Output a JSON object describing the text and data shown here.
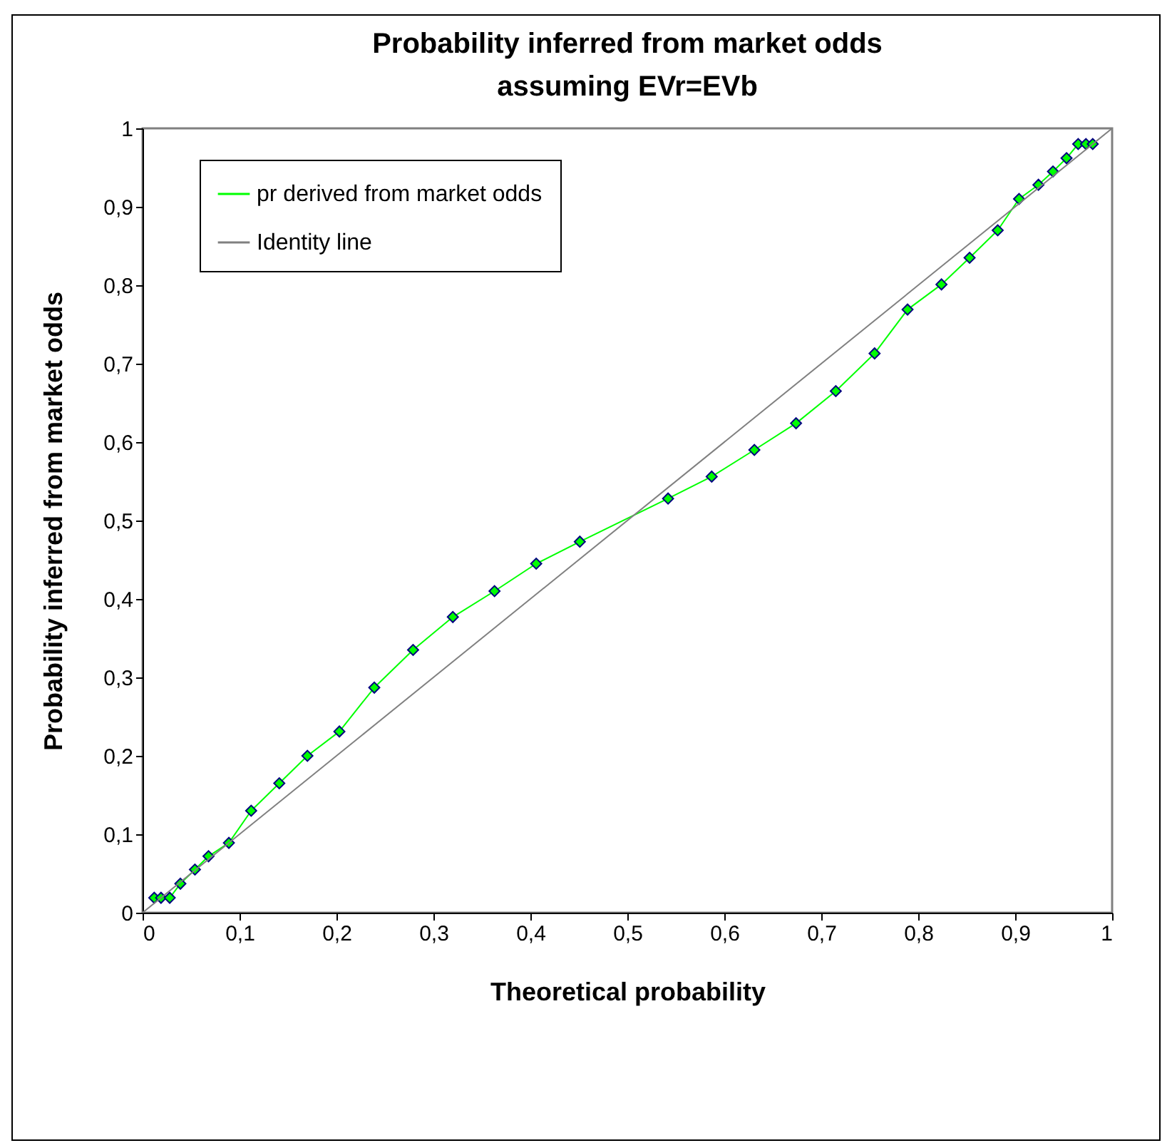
{
  "chart_data": {
    "type": "line",
    "title": [
      "Probability inferred from market odds",
      "assuming EVr=EVb"
    ],
    "xlabel": "Theoretical probability",
    "ylabel": "Probability inferred from market odds",
    "x": [
      0.012,
      0.019,
      0.028,
      0.039,
      0.054,
      0.068,
      0.089,
      0.112,
      0.141,
      0.17,
      0.203,
      0.239,
      0.279,
      0.32,
      0.363,
      0.406,
      0.451,
      0.542,
      0.587,
      0.631,
      0.674,
      0.715,
      0.755,
      0.789,
      0.824,
      0.853,
      0.882,
      0.904,
      0.924,
      0.939,
      0.953,
      0.965,
      0.973,
      0.98
    ],
    "series": [
      {
        "name": "pr derived from market odds",
        "color": "#00ff00",
        "values": [
          0.019,
          0.019,
          0.019,
          0.037,
          0.055,
          0.072,
          0.089,
          0.13,
          0.165,
          0.2,
          0.231,
          0.287,
          0.335,
          0.377,
          0.41,
          0.445,
          0.473,
          0.528,
          0.556,
          0.59,
          0.624,
          0.665,
          0.713,
          0.769,
          0.801,
          0.835,
          0.87,
          0.91,
          0.928,
          0.945,
          0.962,
          0.98,
          0.98,
          0.98
        ]
      },
      {
        "name": "Identity line",
        "type": "line",
        "marker": "none",
        "color": "#808080",
        "x": [
          0,
          1
        ],
        "values": [
          0,
          1
        ]
      }
    ],
    "xlim": [
      0,
      1
    ],
    "ylim": [
      0,
      1
    ],
    "xticks": [
      0,
      {
        "value": 0.1,
        "label": "0,1"
      },
      {
        "value": 0.2,
        "label": "0,2"
      },
      {
        "value": 0.3,
        "label": "0,3"
      },
      {
        "value": 0.4,
        "label": "0,4"
      },
      {
        "value": 0.5,
        "label": "0,5"
      },
      {
        "value": 0.6,
        "label": "0,6"
      },
      {
        "value": 0.7,
        "label": "0,7"
      },
      {
        "value": 0.8,
        "label": "0,8"
      },
      {
        "value": 0.9,
        "label": "0,9"
      },
      1
    ],
    "yticks": [
      0,
      {
        "value": 0.1,
        "label": "0,1"
      },
      {
        "value": 0.2,
        "label": "0,2"
      },
      {
        "value": 0.3,
        "label": "0,3"
      },
      {
        "value": 0.4,
        "label": "0,4"
      },
      {
        "value": 0.5,
        "label": "0,5"
      },
      {
        "value": 0.6,
        "label": "0,6"
      },
      {
        "value": 0.7,
        "label": "0,7"
      },
      {
        "value": 0.8,
        "label": "0,8"
      },
      {
        "value": 0.9,
        "label": "0,9"
      },
      1
    ],
    "legend": "top left",
    "marker": "diamond",
    "line_style": "solid"
  }
}
